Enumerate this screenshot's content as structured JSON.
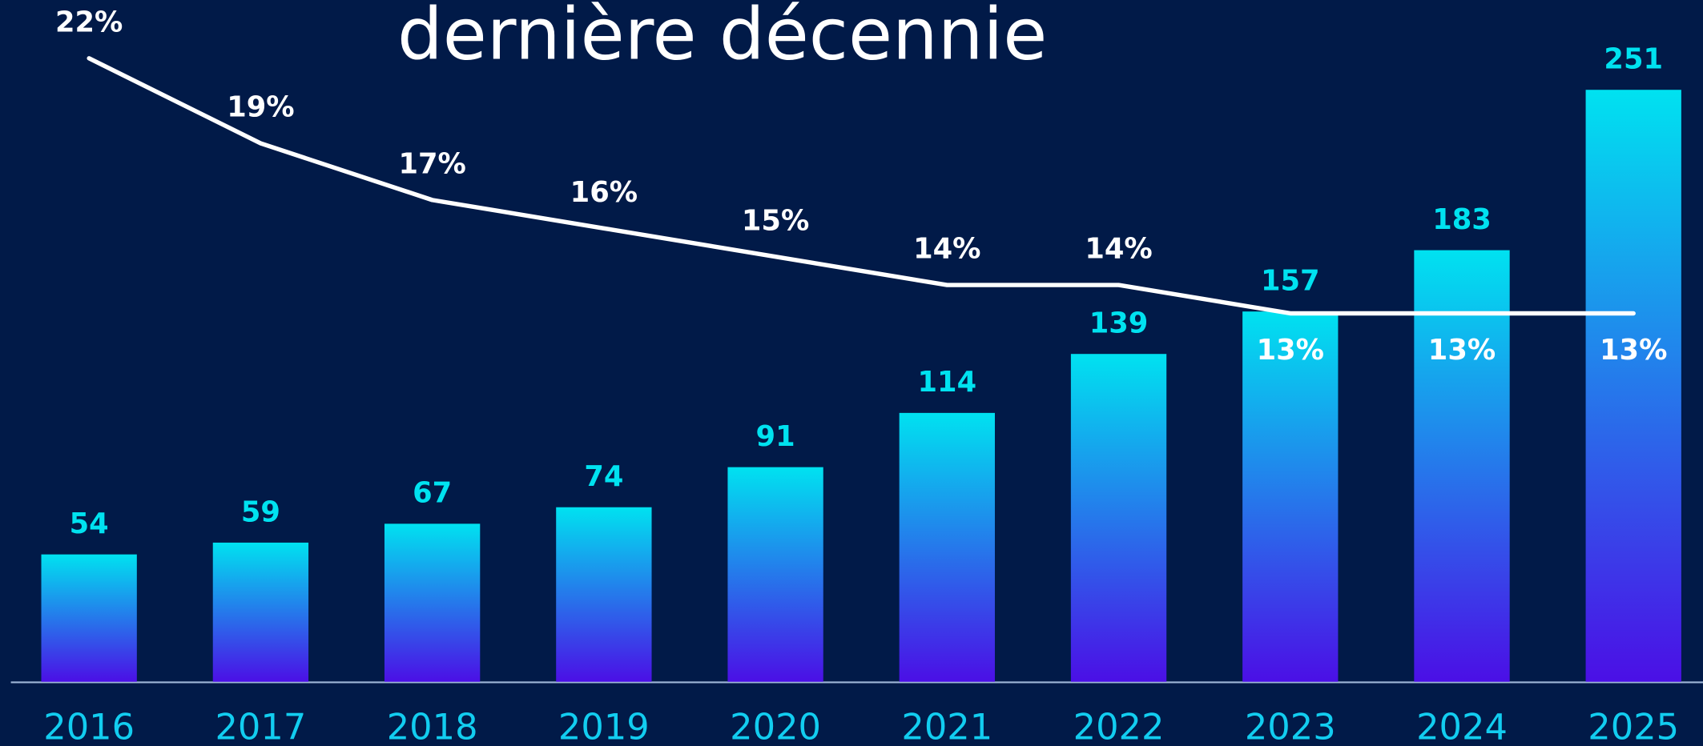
{
  "chart_data": {
    "type": "bar",
    "title": "dernière décennie",
    "categories": [
      "2016",
      "2017",
      "2018",
      "2019",
      "2020",
      "2021",
      "2022",
      "2023",
      "2024",
      "2025"
    ],
    "series": [
      {
        "type": "bar",
        "color": "#00e2f0",
        "color2": "#4b0fe6",
        "values": [
          54,
          59,
          67,
          74,
          91,
          114,
          139,
          157,
          183,
          251
        ]
      },
      {
        "type": "line",
        "axis": "y2",
        "color": "#ffffff",
        "values": [
          22,
          19,
          17,
          16,
          15,
          14,
          14,
          13,
          13,
          13
        ],
        "value_labels": [
          "22%",
          "19%",
          "17%",
          "16%",
          "15%",
          "14%",
          "14%",
          "13%",
          "13%",
          "13%"
        ]
      }
    ],
    "ylim": [
      0,
      289
    ],
    "y2lim": [
      0,
      24.05
    ]
  }
}
